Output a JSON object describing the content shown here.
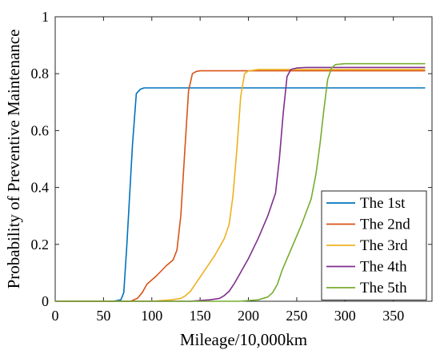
{
  "chart_data": {
    "type": "line",
    "xlabel": "Mileage/10,000km",
    "ylabel": "Probability of Preventive Maintenance",
    "xlim": [
      0,
      390
    ],
    "ylim": [
      0,
      1
    ],
    "xticks": [
      0,
      50,
      100,
      150,
      200,
      250,
      300,
      350
    ],
    "yticks": [
      0,
      0.2,
      0.4,
      0.6,
      0.8,
      1
    ],
    "ytick_labels": [
      "0",
      "0.2",
      "0.4",
      "0.6",
      "0.8",
      "1"
    ],
    "grid": false,
    "legend_position": "bottom-right",
    "series": [
      {
        "name": "The 1st",
        "color": "#0072BD",
        "x": [
          0,
          60,
          68,
          71,
          74,
          77,
          80,
          84,
          88,
          92,
          100,
          150,
          200,
          250,
          300,
          350,
          383
        ],
        "y": [
          0,
          0,
          0.005,
          0.03,
          0.19,
          0.37,
          0.55,
          0.73,
          0.745,
          0.75,
          0.75,
          0.75,
          0.75,
          0.75,
          0.75,
          0.75,
          0.75
        ]
      },
      {
        "name": "The 2nd",
        "color": "#D95319",
        "x": [
          0,
          78,
          85,
          90,
          95,
          105,
          115,
          122,
          126,
          130,
          134,
          138,
          142,
          146,
          150,
          160,
          200,
          250,
          300,
          350,
          383
        ],
        "y": [
          0,
          0,
          0.01,
          0.03,
          0.06,
          0.09,
          0.125,
          0.145,
          0.18,
          0.3,
          0.52,
          0.74,
          0.8,
          0.808,
          0.81,
          0.81,
          0.81,
          0.81,
          0.81,
          0.81,
          0.81
        ]
      },
      {
        "name": "The 3rd",
        "color": "#EDB120",
        "x": [
          0,
          100,
          120,
          130,
          135,
          140,
          145,
          155,
          165,
          175,
          180,
          184,
          188,
          192,
          196,
          200,
          205,
          210,
          250,
          300,
          350,
          383
        ],
        "y": [
          0,
          0,
          0.005,
          0.01,
          0.02,
          0.035,
          0.06,
          0.11,
          0.16,
          0.22,
          0.27,
          0.37,
          0.53,
          0.72,
          0.8,
          0.81,
          0.812,
          0.815,
          0.815,
          0.815,
          0.815,
          0.815
        ]
      },
      {
        "name": "The 4th",
        "color": "#7E2F8E",
        "x": [
          0,
          140,
          160,
          170,
          175,
          180,
          185,
          190,
          200,
          210,
          220,
          228,
          232,
          236,
          240,
          244,
          250,
          260,
          300,
          350,
          383
        ],
        "y": [
          0,
          0,
          0.005,
          0.01,
          0.02,
          0.035,
          0.06,
          0.09,
          0.15,
          0.22,
          0.3,
          0.38,
          0.5,
          0.66,
          0.79,
          0.815,
          0.82,
          0.822,
          0.822,
          0.822,
          0.822
        ]
      },
      {
        "name": "The 5th",
        "color": "#77AC30",
        "x": [
          0,
          190,
          210,
          220,
          225,
          230,
          235,
          245,
          255,
          265,
          270,
          274,
          278,
          282,
          286,
          290,
          300,
          350,
          383
        ],
        "y": [
          0,
          0,
          0.005,
          0.015,
          0.03,
          0.06,
          0.11,
          0.19,
          0.27,
          0.36,
          0.45,
          0.55,
          0.67,
          0.78,
          0.82,
          0.832,
          0.835,
          0.835,
          0.835
        ]
      }
    ]
  }
}
